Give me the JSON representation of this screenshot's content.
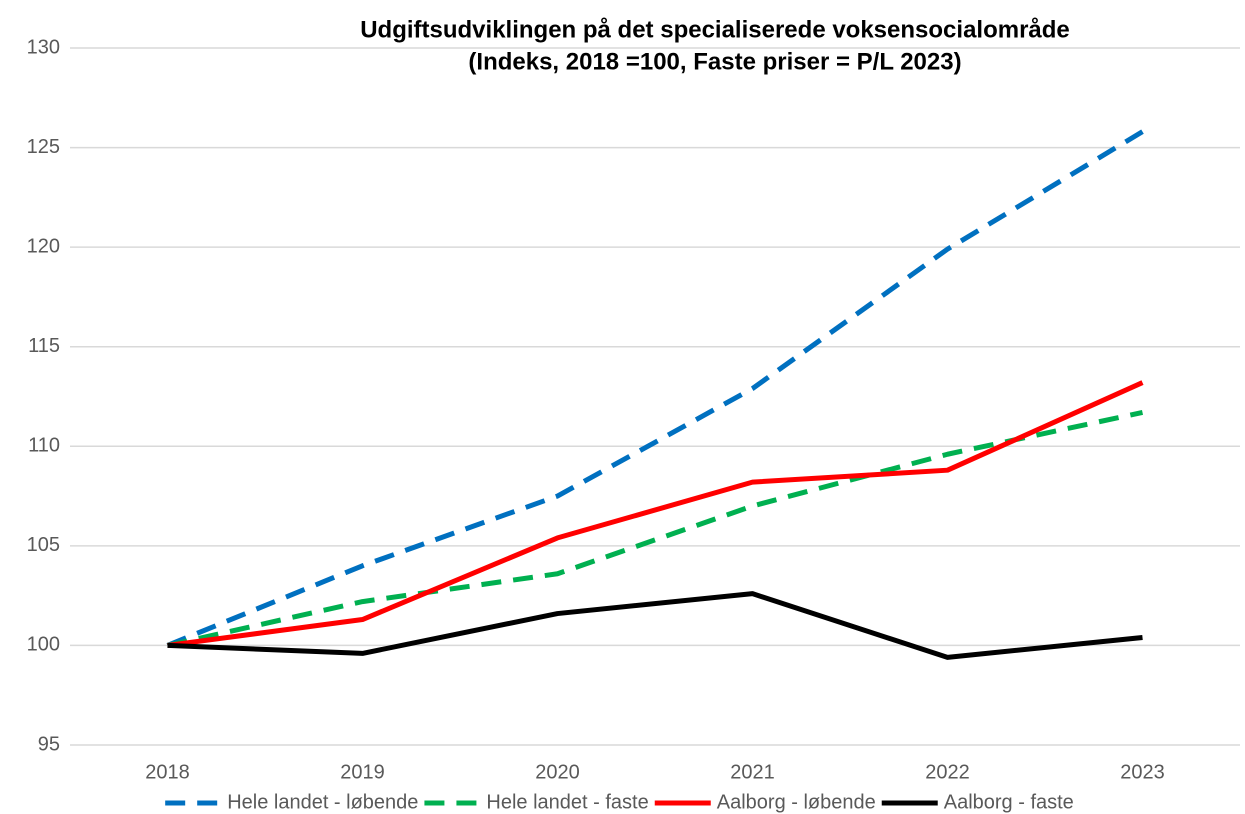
{
  "chart_data": {
    "type": "line",
    "title": "Udgiftsudviklingen på det specialiserede voksensocialområde",
    "subtitle": "(Indeks, 2018 =100, Faste priser = P/L 2023)",
    "categories": [
      "2018",
      "2019",
      "2020",
      "2021",
      "2022",
      "2023"
    ],
    "series": [
      {
        "name": "Hele landet - løbende",
        "color": "#0070c0",
        "dash": "dashed",
        "values": [
          100,
          104.0,
          107.5,
          112.9,
          119.9,
          125.8
        ]
      },
      {
        "name": "Hele landet - faste",
        "color": "#00b050",
        "dash": "dashed",
        "values": [
          100,
          102.2,
          103.6,
          107.0,
          109.6,
          111.7
        ]
      },
      {
        "name": "Aalborg - løbende",
        "color": "#ff0000",
        "dash": "solid",
        "values": [
          100,
          101.3,
          105.4,
          108.2,
          108.8,
          113.2
        ]
      },
      {
        "name": "Aalborg - faste",
        "color": "#000000",
        "dash": "solid",
        "values": [
          100,
          99.6,
          101.6,
          102.6,
          99.4,
          100.4
        ]
      }
    ],
    "ylim": [
      95,
      130
    ],
    "yticks": [
      95,
      100,
      105,
      110,
      115,
      120,
      125,
      130
    ],
    "grid": true,
    "legend": "bottom"
  }
}
